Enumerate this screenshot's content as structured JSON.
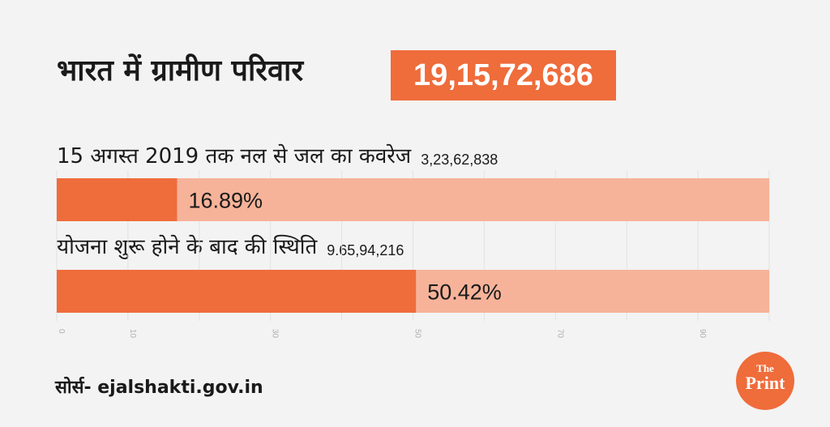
{
  "header": {
    "title": "भारत में ग्रामीण परिवार",
    "total": "19,15,72,686"
  },
  "rows": [
    {
      "label": "15 अगस्त 2019 तक नल से जल का कवरेज",
      "count": "3,23,62,838",
      "percent_label": "16.89%"
    },
    {
      "label": "योजना शुरू होने के बाद की स्थिति",
      "count": "9.65,94,216",
      "percent_label": "50.42%"
    }
  ],
  "source": "सोर्स- ejalshakti.gov.in",
  "logo": {
    "line1": "The",
    "line2": "Print"
  },
  "colors": {
    "accent": "#ef6c3b",
    "track": "#f6b399",
    "background": "#f3f3f3"
  },
  "chart_data": {
    "type": "bar",
    "orientation": "horizontal",
    "categories": [
      "15 अगस्त 2019 तक नल से जल का कवरेज",
      "योजना शुरू होने के बाद की स्थिति"
    ],
    "values": [
      16.89,
      50.42
    ],
    "xlim": [
      0,
      100
    ],
    "xticks": [
      0,
      10,
      30,
      50,
      70,
      90
    ],
    "grid": true,
    "title": "भारत में ग्रामीण परिवार"
  }
}
